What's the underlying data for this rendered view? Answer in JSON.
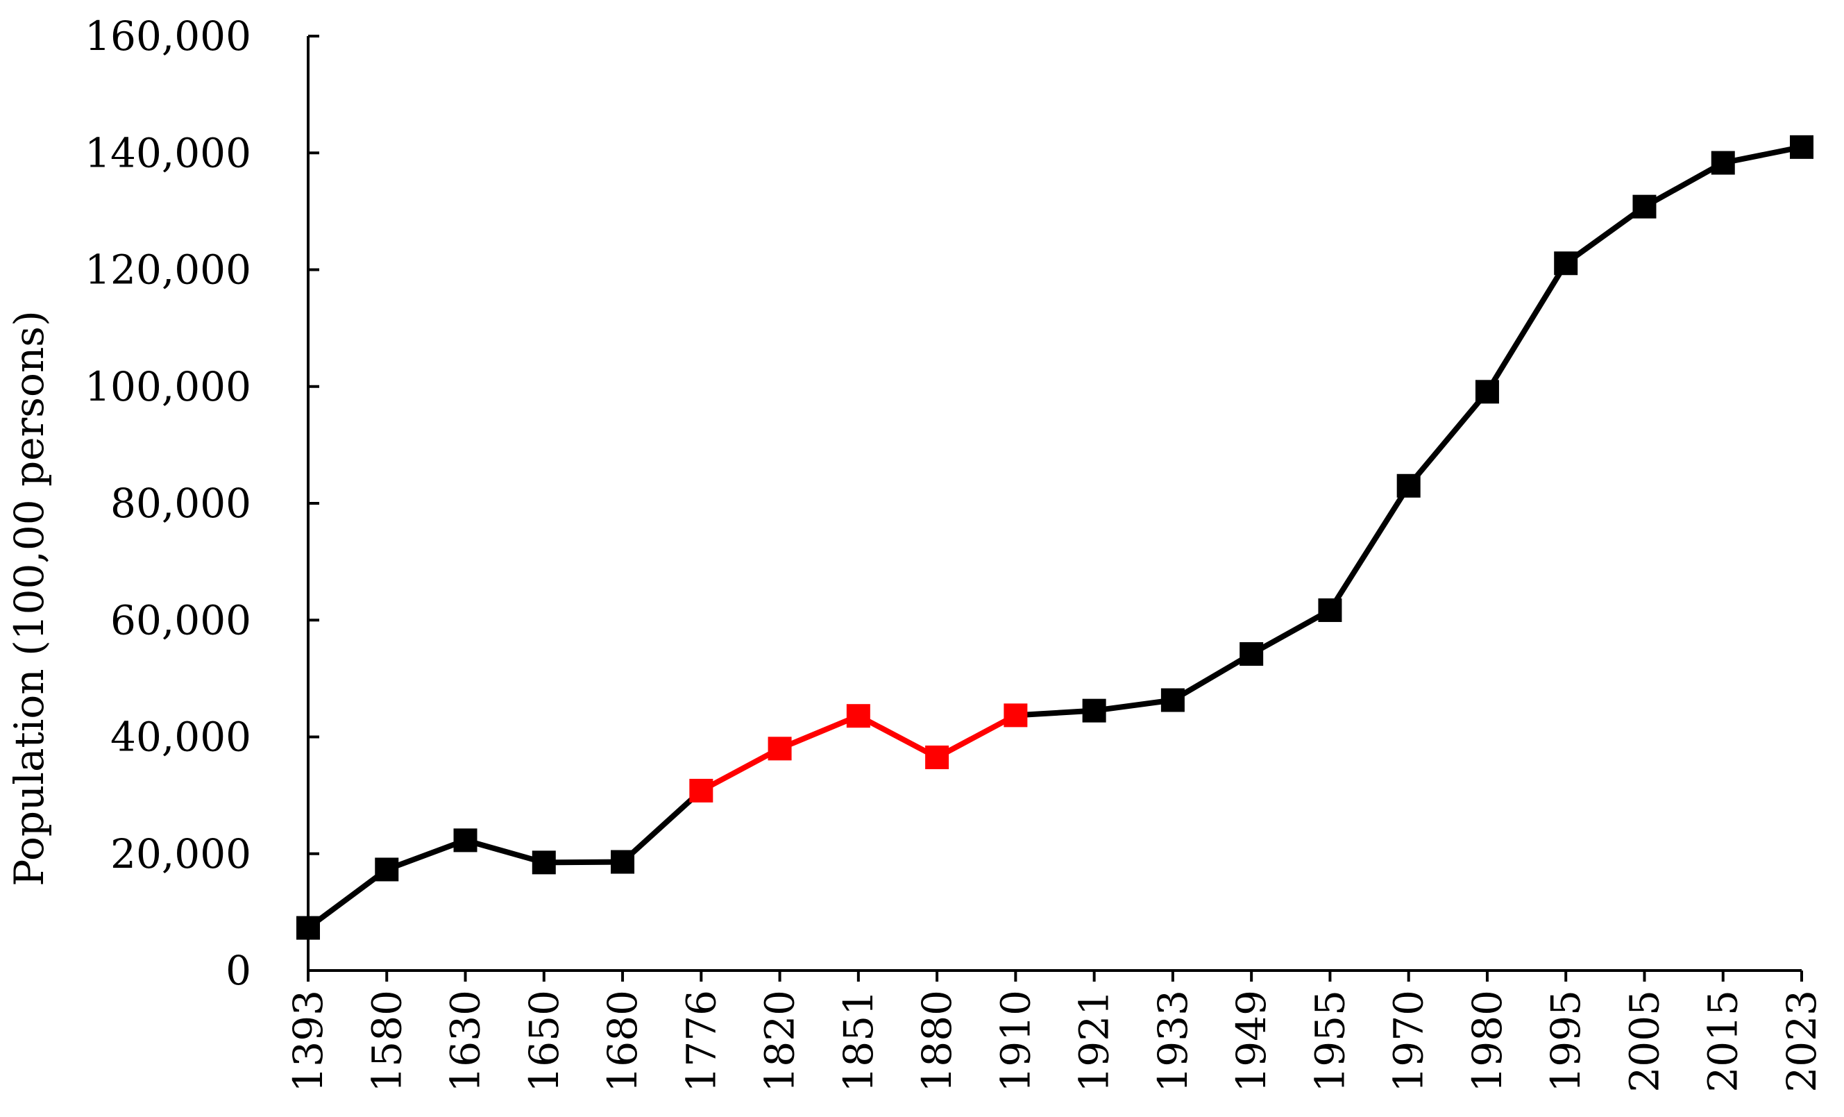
{
  "chart_data": {
    "type": "line",
    "title": "",
    "xlabel": "",
    "ylabel": "Population (100,00 persons)",
    "categories": [
      "1393",
      "1580",
      "1630",
      "1650",
      "1680",
      "1776",
      "1820",
      "1851",
      "1880",
      "1910",
      "1921",
      "1933",
      "1949",
      "1955",
      "1970",
      "1980",
      "1995",
      "2005",
      "2015",
      "2023"
    ],
    "values": [
      7300,
      17300,
      22300,
      18500,
      18600,
      30800,
      38000,
      43600,
      36500,
      43700,
      44500,
      46300,
      54200,
      61700,
      83000,
      99100,
      121100,
      130800,
      138300,
      141000
    ],
    "highlight_range": [
      "1776",
      "1910"
    ],
    "colors": {
      "base": "#000000",
      "highlight": "#ff0000"
    },
    "ylim": [
      0,
      160000
    ],
    "yticks": [
      0,
      20000,
      40000,
      60000,
      80000,
      100000,
      120000,
      140000,
      160000
    ],
    "ytick_labels": [
      "0",
      "20,000",
      "40,000",
      "60,000",
      "80,000",
      "100,000",
      "120,000",
      "140,000",
      "160,000"
    ],
    "grid": false,
    "legend": "none",
    "marker": "square"
  }
}
